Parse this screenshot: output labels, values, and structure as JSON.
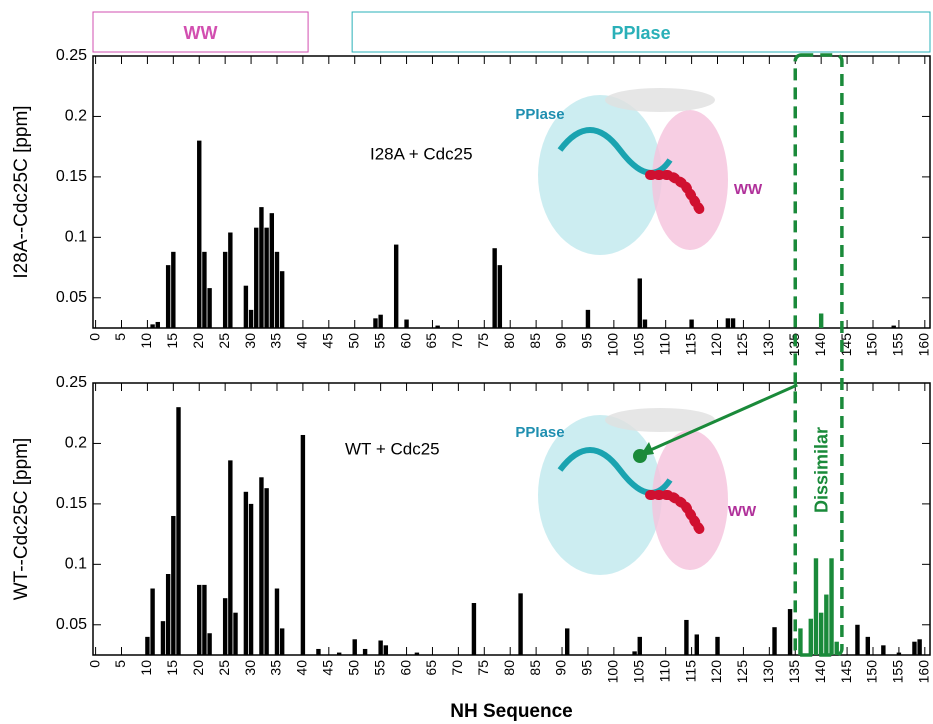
{
  "chart_data": [
    {
      "type": "bar",
      "ylabel": "I28A--Cdc25C  [ppm]",
      "color": "#000000",
      "domains": [
        {
          "label": "WW",
          "xlim": [
            -0.5,
            41
          ],
          "color": "#d24fb0"
        },
        {
          "label": "PPIase",
          "xlim": [
            49.5,
            161
          ],
          "color": "#2ab0b8"
        }
      ],
      "annotations": [
        {
          "text": "I28A + Cdc25",
          "color": "#000000"
        },
        {
          "text": "PPIase",
          "color": "#1f8fb0"
        },
        {
          "text": "WW",
          "color": "#b0309a"
        }
      ],
      "highlight": {
        "xlim": [
          135,
          144
        ],
        "color": "#1a8a3a"
      },
      "x": [
        11,
        12,
        14,
        15,
        20,
        21,
        22,
        25,
        26,
        29,
        30,
        31,
        32,
        33,
        34,
        35,
        36,
        54,
        55,
        58,
        60,
        66,
        77,
        78,
        95,
        105,
        106,
        115,
        122,
        123,
        140,
        154
      ],
      "values": [
        0.028,
        0.03,
        0.077,
        0.088,
        0.18,
        0.088,
        0.058,
        0.088,
        0.104,
        0.06,
        0.04,
        0.108,
        0.125,
        0.108,
        0.12,
        0.088,
        0.072,
        0.033,
        0.036,
        0.094,
        0.032,
        0.027,
        0.091,
        0.077,
        0.04,
        0.066,
        0.032,
        0.032,
        0.033,
        0.033,
        0.037,
        0.027
      ],
      "xlim": [
        -0.5,
        161
      ],
      "ylim": [
        0.025,
        0.25
      ],
      "xticks": [
        0,
        5,
        10,
        15,
        20,
        25,
        30,
        35,
        40,
        45,
        50,
        55,
        60,
        65,
        70,
        75,
        80,
        85,
        90,
        95,
        100,
        105,
        110,
        115,
        120,
        125,
        130,
        135,
        140,
        145,
        150,
        155,
        160
      ],
      "yticks": [
        0.05,
        0.1,
        0.15,
        0.2,
        0.25
      ]
    },
    {
      "type": "bar",
      "ylabel": "WT--Cdc25C  [ppm]",
      "xlabel": "NH Sequence",
      "color": "#000000",
      "annotations": [
        {
          "text": "WT + Cdc25",
          "color": "#000000"
        },
        {
          "text": "PPIase",
          "color": "#1f8fb0"
        },
        {
          "text": "WW",
          "color": "#b0309a"
        }
      ],
      "highlight": {
        "xlim": [
          135,
          144
        ],
        "color": "#1a8a3a",
        "label": "Dissimilar"
      },
      "x": [
        10,
        11,
        13,
        14,
        15,
        16,
        20,
        21,
        22,
        25,
        26,
        27,
        29,
        30,
        32,
        33,
        35,
        36,
        40,
        43,
        47,
        50,
        52,
        55,
        56,
        62,
        73,
        82,
        91,
        104,
        105,
        114,
        116,
        120,
        131,
        134,
        136,
        138,
        139,
        140,
        141,
        142,
        143,
        147,
        149,
        152,
        155,
        158,
        159
      ],
      "values": [
        0.04,
        0.08,
        0.053,
        0.092,
        0.14,
        0.23,
        0.083,
        0.083,
        0.043,
        0.072,
        0.186,
        0.06,
        0.16,
        0.15,
        0.172,
        0.163,
        0.08,
        0.047,
        0.207,
        0.03,
        0.027,
        0.038,
        0.03,
        0.037,
        0.033,
        0.027,
        0.068,
        0.076,
        0.047,
        0.028,
        0.04,
        0.054,
        0.042,
        0.04,
        0.048,
        0.063,
        0.047,
        0.055,
        0.105,
        0.06,
        0.075,
        0.105,
        0.036,
        0.05,
        0.04,
        0.033,
        0.027,
        0.036,
        0.038
      ],
      "xlim": [
        -0.5,
        161
      ],
      "ylim": [
        0.025,
        0.25
      ],
      "xticks": [
        0,
        5,
        10,
        15,
        20,
        25,
        30,
        35,
        40,
        45,
        50,
        55,
        60,
        65,
        70,
        75,
        80,
        85,
        90,
        95,
        100,
        105,
        110,
        115,
        120,
        125,
        130,
        135,
        140,
        145,
        150,
        155,
        160
      ],
      "yticks": [
        0.05,
        0.1,
        0.15,
        0.2,
        0.25
      ]
    }
  ]
}
